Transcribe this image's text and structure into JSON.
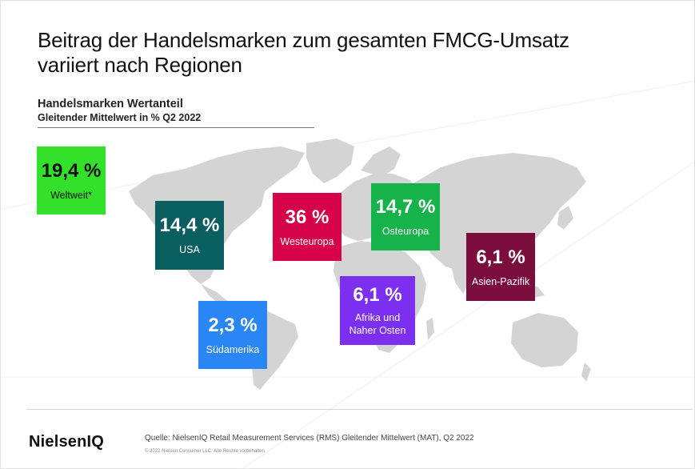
{
  "title": {
    "line1": "Beitrag der Handelsmarken zum gesamten FMCG-Umsatz",
    "line2": "variiert nach Regionen"
  },
  "subtitle": {
    "main": "Handelsmarken Wertanteil",
    "sub": "Gleitender Mittelwert in % Q2 2022"
  },
  "regions": [
    {
      "id": "weltweit",
      "value": "19,4 %",
      "label": "Weltweit*",
      "color": "#33e02a",
      "text_color": "#111111"
    },
    {
      "id": "usa",
      "value": "14,4 %",
      "label": "USA",
      "color": "#0b5e5f",
      "text_color": "#ffffff"
    },
    {
      "id": "westeuropa",
      "value": "36 %",
      "label": "Westeuropa",
      "color": "#d7014a",
      "text_color": "#ffffff"
    },
    {
      "id": "osteuropa",
      "value": "14,7 %",
      "label": "Osteuropa",
      "color": "#16b34a",
      "text_color": "#ffffff"
    },
    {
      "id": "asien-pazifik",
      "value": "6,1 %",
      "label": "Asien-Pazifik",
      "color": "#7b0e3c",
      "text_color": "#ffffff"
    },
    {
      "id": "afrika",
      "value": "6,1 %",
      "label_lines": [
        "Afrika und",
        "Naher Osten"
      ],
      "color": "#7c2ff0",
      "text_color": "#ffffff"
    },
    {
      "id": "suedamerika",
      "value": "2,3 %",
      "label": "Südamerika",
      "color": "#2b86f5",
      "text_color": "#ffffff"
    }
  ],
  "map": {
    "land_color": "#d4d4d4"
  },
  "footer": {
    "logo": "NielsenIQ",
    "source": "Quelle: NielsenIQ Retail Measurement Services (RMS) Gleitender Mittelwert (MAT), Q2 2022",
    "copyright": "© 2022 Nielsen Consumer LLC. Alle Rechte vorbehalten."
  }
}
